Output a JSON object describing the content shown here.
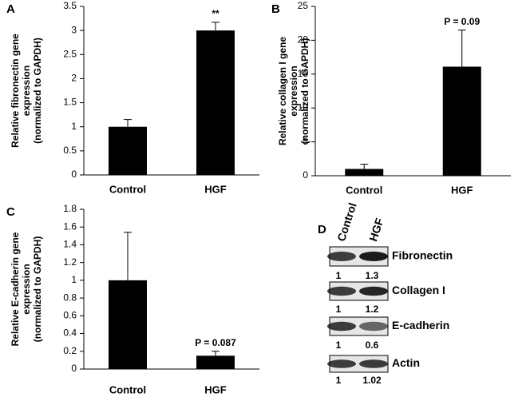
{
  "chart_data": [
    {
      "type": "bar",
      "panel": "A",
      "ylabel_lines": [
        "Relative fibronectin gene",
        "expression",
        "(normalized to GAPDH)"
      ],
      "categories": [
        "Control",
        "HGF"
      ],
      "values": [
        1,
        3
      ],
      "errors": [
        0.15,
        0.17
      ],
      "annotations": [
        null,
        "**"
      ],
      "color": "#000000",
      "ylim": [
        0,
        3.5
      ],
      "yticks": [
        0,
        0.5,
        1,
        1.5,
        2,
        2.5,
        3,
        3.5
      ]
    },
    {
      "type": "bar",
      "panel": "B",
      "ylabel_lines": [
        "Relative collagen I gene",
        "expression",
        "(normalized to GAPDH)"
      ],
      "categories": [
        "Control",
        "HGF"
      ],
      "values": [
        1,
        16.1
      ],
      "errors": [
        0.7,
        5.4
      ],
      "annotations": [
        null,
        "P = 0.09"
      ],
      "color": "#000000",
      "ylim": [
        0,
        25
      ],
      "yticks": [
        0,
        5,
        10,
        15,
        20,
        25
      ]
    },
    {
      "type": "bar",
      "panel": "C",
      "ylabel_lines": [
        "Relative E-cadherin gene",
        "expression",
        "(normalized to GAPDH)"
      ],
      "categories": [
        "Control",
        "HGF"
      ],
      "values": [
        1,
        0.15
      ],
      "errors": [
        0.54,
        0.05
      ],
      "annotations": [
        null,
        "P = 0.087"
      ],
      "color": "#000000",
      "ylim": [
        0,
        1.8
      ],
      "yticks": [
        0,
        0.2,
        0.4,
        0.6,
        0.8,
        1,
        1.2,
        1.4,
        1.6,
        1.8
      ]
    }
  ],
  "blot": {
    "panel": "D",
    "lanes": [
      "Control",
      "HGF"
    ],
    "rows": [
      {
        "protein": "Fibronectin",
        "values": [
          1,
          1.3
        ]
      },
      {
        "protein": "Collagen I",
        "values": [
          1,
          1.2
        ]
      },
      {
        "protein": "E-cadherin",
        "values": [
          1,
          0.6
        ]
      },
      {
        "protein": "Actin",
        "values": [
          1,
          1.02
        ]
      }
    ]
  }
}
